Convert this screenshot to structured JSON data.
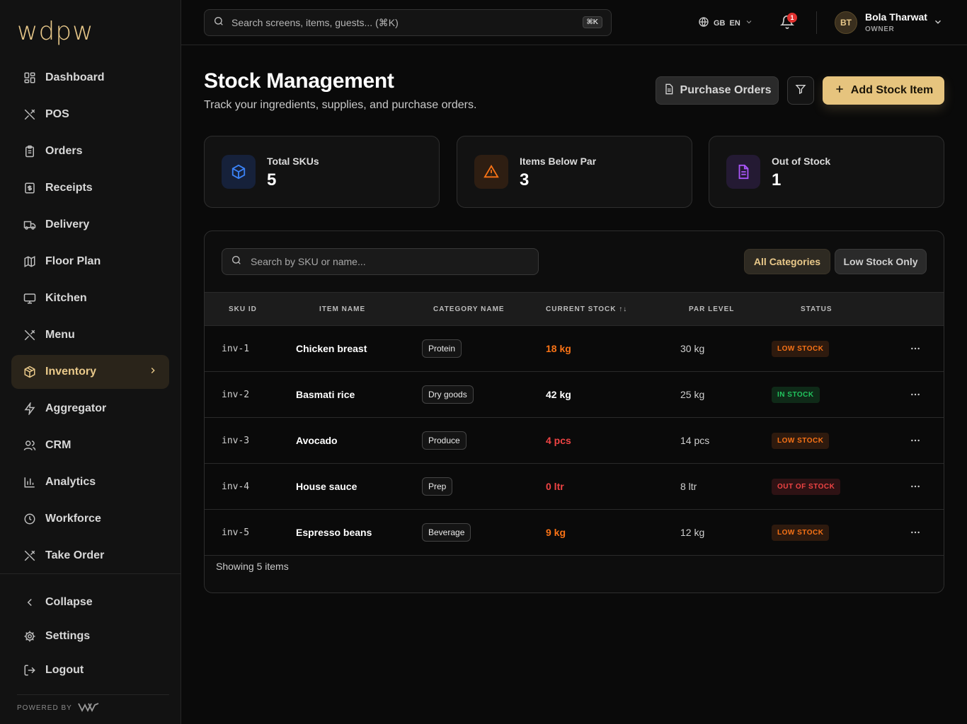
{
  "brand": {
    "logo_text": "wdpw",
    "powered_by": "POWERED BY"
  },
  "sidebar": {
    "items": [
      {
        "label": "Dashboard",
        "icon": "dashboard-icon"
      },
      {
        "label": "POS",
        "icon": "utensils-icon"
      },
      {
        "label": "Orders",
        "icon": "clipboard-icon"
      },
      {
        "label": "Receipts",
        "icon": "receipt-icon"
      },
      {
        "label": "Delivery",
        "icon": "truck-icon"
      },
      {
        "label": "Floor Plan",
        "icon": "map-icon"
      },
      {
        "label": "Kitchen",
        "icon": "monitor-icon"
      },
      {
        "label": "Menu",
        "icon": "utensils-icon"
      },
      {
        "label": "Inventory",
        "icon": "package-icon",
        "active": true
      },
      {
        "label": "Aggregator",
        "icon": "zap-icon"
      },
      {
        "label": "CRM",
        "icon": "users-icon"
      },
      {
        "label": "Analytics",
        "icon": "bar-chart-icon"
      },
      {
        "label": "Workforce",
        "icon": "clock-icon"
      },
      {
        "label": "Take Order",
        "icon": "utensils-icon"
      }
    ],
    "bottom": [
      {
        "label": "Collapse",
        "icon": "chevron-left-icon"
      },
      {
        "label": "Settings",
        "icon": "gear-icon"
      },
      {
        "label": "Logout",
        "icon": "logout-icon"
      }
    ]
  },
  "topbar": {
    "search_placeholder": "Search screens, items, guests... (⌘K)",
    "shortcut": "⌘K",
    "lang_flag": "GB",
    "lang_code": "EN",
    "notification_count": "1",
    "user": {
      "initials": "BT",
      "name": "Bola Tharwat",
      "role": "OWNER"
    }
  },
  "page": {
    "title": "Stock Management",
    "subtitle": "Track your ingredients, supplies, and purchase orders.",
    "purchase_orders_label": "Purchase Orders",
    "add_item_label": "Add Stock Item"
  },
  "stats": [
    {
      "label": "Total SKUs",
      "value": "5",
      "icon": "box-icon",
      "color": "#3b82f6",
      "bg": "#16213a"
    },
    {
      "label": "Items Below Par",
      "value": "3",
      "icon": "warning-icon",
      "color": "#f97316",
      "bg": "#2e1e12"
    },
    {
      "label": "Out of Stock",
      "value": "1",
      "icon": "file-icon",
      "color": "#a855f7",
      "bg": "#241a33"
    }
  ],
  "table": {
    "search_placeholder": "Search by SKU or name...",
    "filter_all": "All Categories",
    "filter_low": "Low Stock Only",
    "columns": [
      "SKU ID",
      "ITEM NAME",
      "CATEGORY NAME",
      "CURRENT STOCK ↑↓",
      "PAR LEVEL",
      "STATUS"
    ],
    "rows": [
      {
        "sku": "inv-1",
        "name": "Chicken breast",
        "category": "Protein",
        "stock": "18 kg",
        "par": "30 kg",
        "status": "LOW STOCK",
        "stock_color": "#f97316",
        "status_color": "#f97316",
        "status_bg": "#2e1a0e"
      },
      {
        "sku": "inv-2",
        "name": "Basmati rice",
        "category": "Dry goods",
        "stock": "42 kg",
        "par": "25 kg",
        "status": "IN STOCK",
        "stock_color": "#ffffff",
        "status_color": "#22c55e",
        "status_bg": "#0f2a18"
      },
      {
        "sku": "inv-3",
        "name": "Avocado",
        "category": "Produce",
        "stock": "4 pcs",
        "par": "14 pcs",
        "status": "LOW STOCK",
        "stock_color": "#ef4444",
        "status_color": "#f97316",
        "status_bg": "#2e1a0e"
      },
      {
        "sku": "inv-4",
        "name": "House sauce",
        "category": "Prep",
        "stock": "0 ltr",
        "par": "8 ltr",
        "status": "OUT OF STOCK",
        "stock_color": "#ef4444",
        "status_color": "#ef4444",
        "status_bg": "#2e1214"
      },
      {
        "sku": "inv-5",
        "name": "Espresso beans",
        "category": "Beverage",
        "stock": "9 kg",
        "par": "12 kg",
        "status": "LOW STOCK",
        "stock_color": "#f97316",
        "status_color": "#f97316",
        "status_bg": "#2e1a0e"
      }
    ],
    "footer": "Showing 5 items"
  },
  "colors": {
    "accent": "#e6c47e",
    "background": "#0a0a0a"
  }
}
